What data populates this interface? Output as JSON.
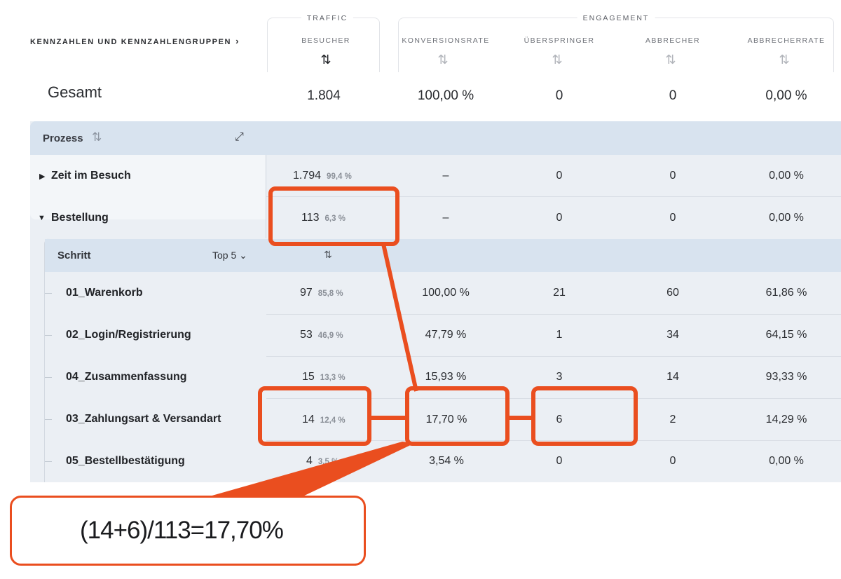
{
  "header": {
    "metrics_link": "KENNZAHLEN UND KENNZAHLENGRUPPEN",
    "groups": {
      "traffic": "TRAFFIC",
      "engagement": "ENGAGEMENT"
    },
    "columns": [
      "BESUCHER",
      "KONVERSIONSRATE",
      "ÜBERSPRINGER",
      "ABBRECHER",
      "ABBRECHERRATE"
    ]
  },
  "total": {
    "label": "Gesamt",
    "values": [
      "1.804",
      "100,00 %",
      "0",
      "0",
      "0,00 %"
    ]
  },
  "prozess": {
    "label": "Prozess",
    "rows": [
      {
        "label": "Zeit im Besuch",
        "visitors": "1.794",
        "share": "99,4 %",
        "conversion": "–",
        "skippers": "0",
        "dropouts": "0",
        "dropout_rate": "0,00 %"
      },
      {
        "label": "Bestellung",
        "visitors": "113",
        "share": "6,3 %",
        "conversion": "–",
        "skippers": "0",
        "dropouts": "0",
        "dropout_rate": "0,00 %"
      }
    ]
  },
  "schritt": {
    "label": "Schritt",
    "filter": "Top 5",
    "rows": [
      {
        "label": "01_Warenkorb",
        "visitors": "97",
        "share": "85,8 %",
        "conversion": "100,00 %",
        "skippers": "21",
        "dropouts": "60",
        "dropout_rate": "61,86 %"
      },
      {
        "label": "02_Login/Registrierung",
        "visitors": "53",
        "share": "46,9 %",
        "conversion": "47,79 %",
        "skippers": "1",
        "dropouts": "34",
        "dropout_rate": "64,15 %"
      },
      {
        "label": "04_Zusammenfassung",
        "visitors": "15",
        "share": "13,3 %",
        "conversion": "15,93 %",
        "skippers": "3",
        "dropouts": "14",
        "dropout_rate": "93,33 %"
      },
      {
        "label": "03_Zahlungsart & Versandart",
        "visitors": "14",
        "share": "12,4 %",
        "conversion": "17,70 %",
        "skippers": "6",
        "dropouts": "2",
        "dropout_rate": "14,29 %"
      },
      {
        "label": "05_Bestellbestätigung",
        "visitors": "4",
        "share": "3,5 %",
        "conversion": "3,54 %",
        "skippers": "0",
        "dropouts": "0",
        "dropout_rate": "0,00 %"
      }
    ]
  },
  "annotation": {
    "formula": "(14+6)/113=17,70%",
    "color": "#ea4e1f"
  },
  "icons": {
    "sort": "sort-icon",
    "expand": "expand-icon",
    "caret": "caret-icon",
    "chevron": "chevron-right-icon"
  }
}
